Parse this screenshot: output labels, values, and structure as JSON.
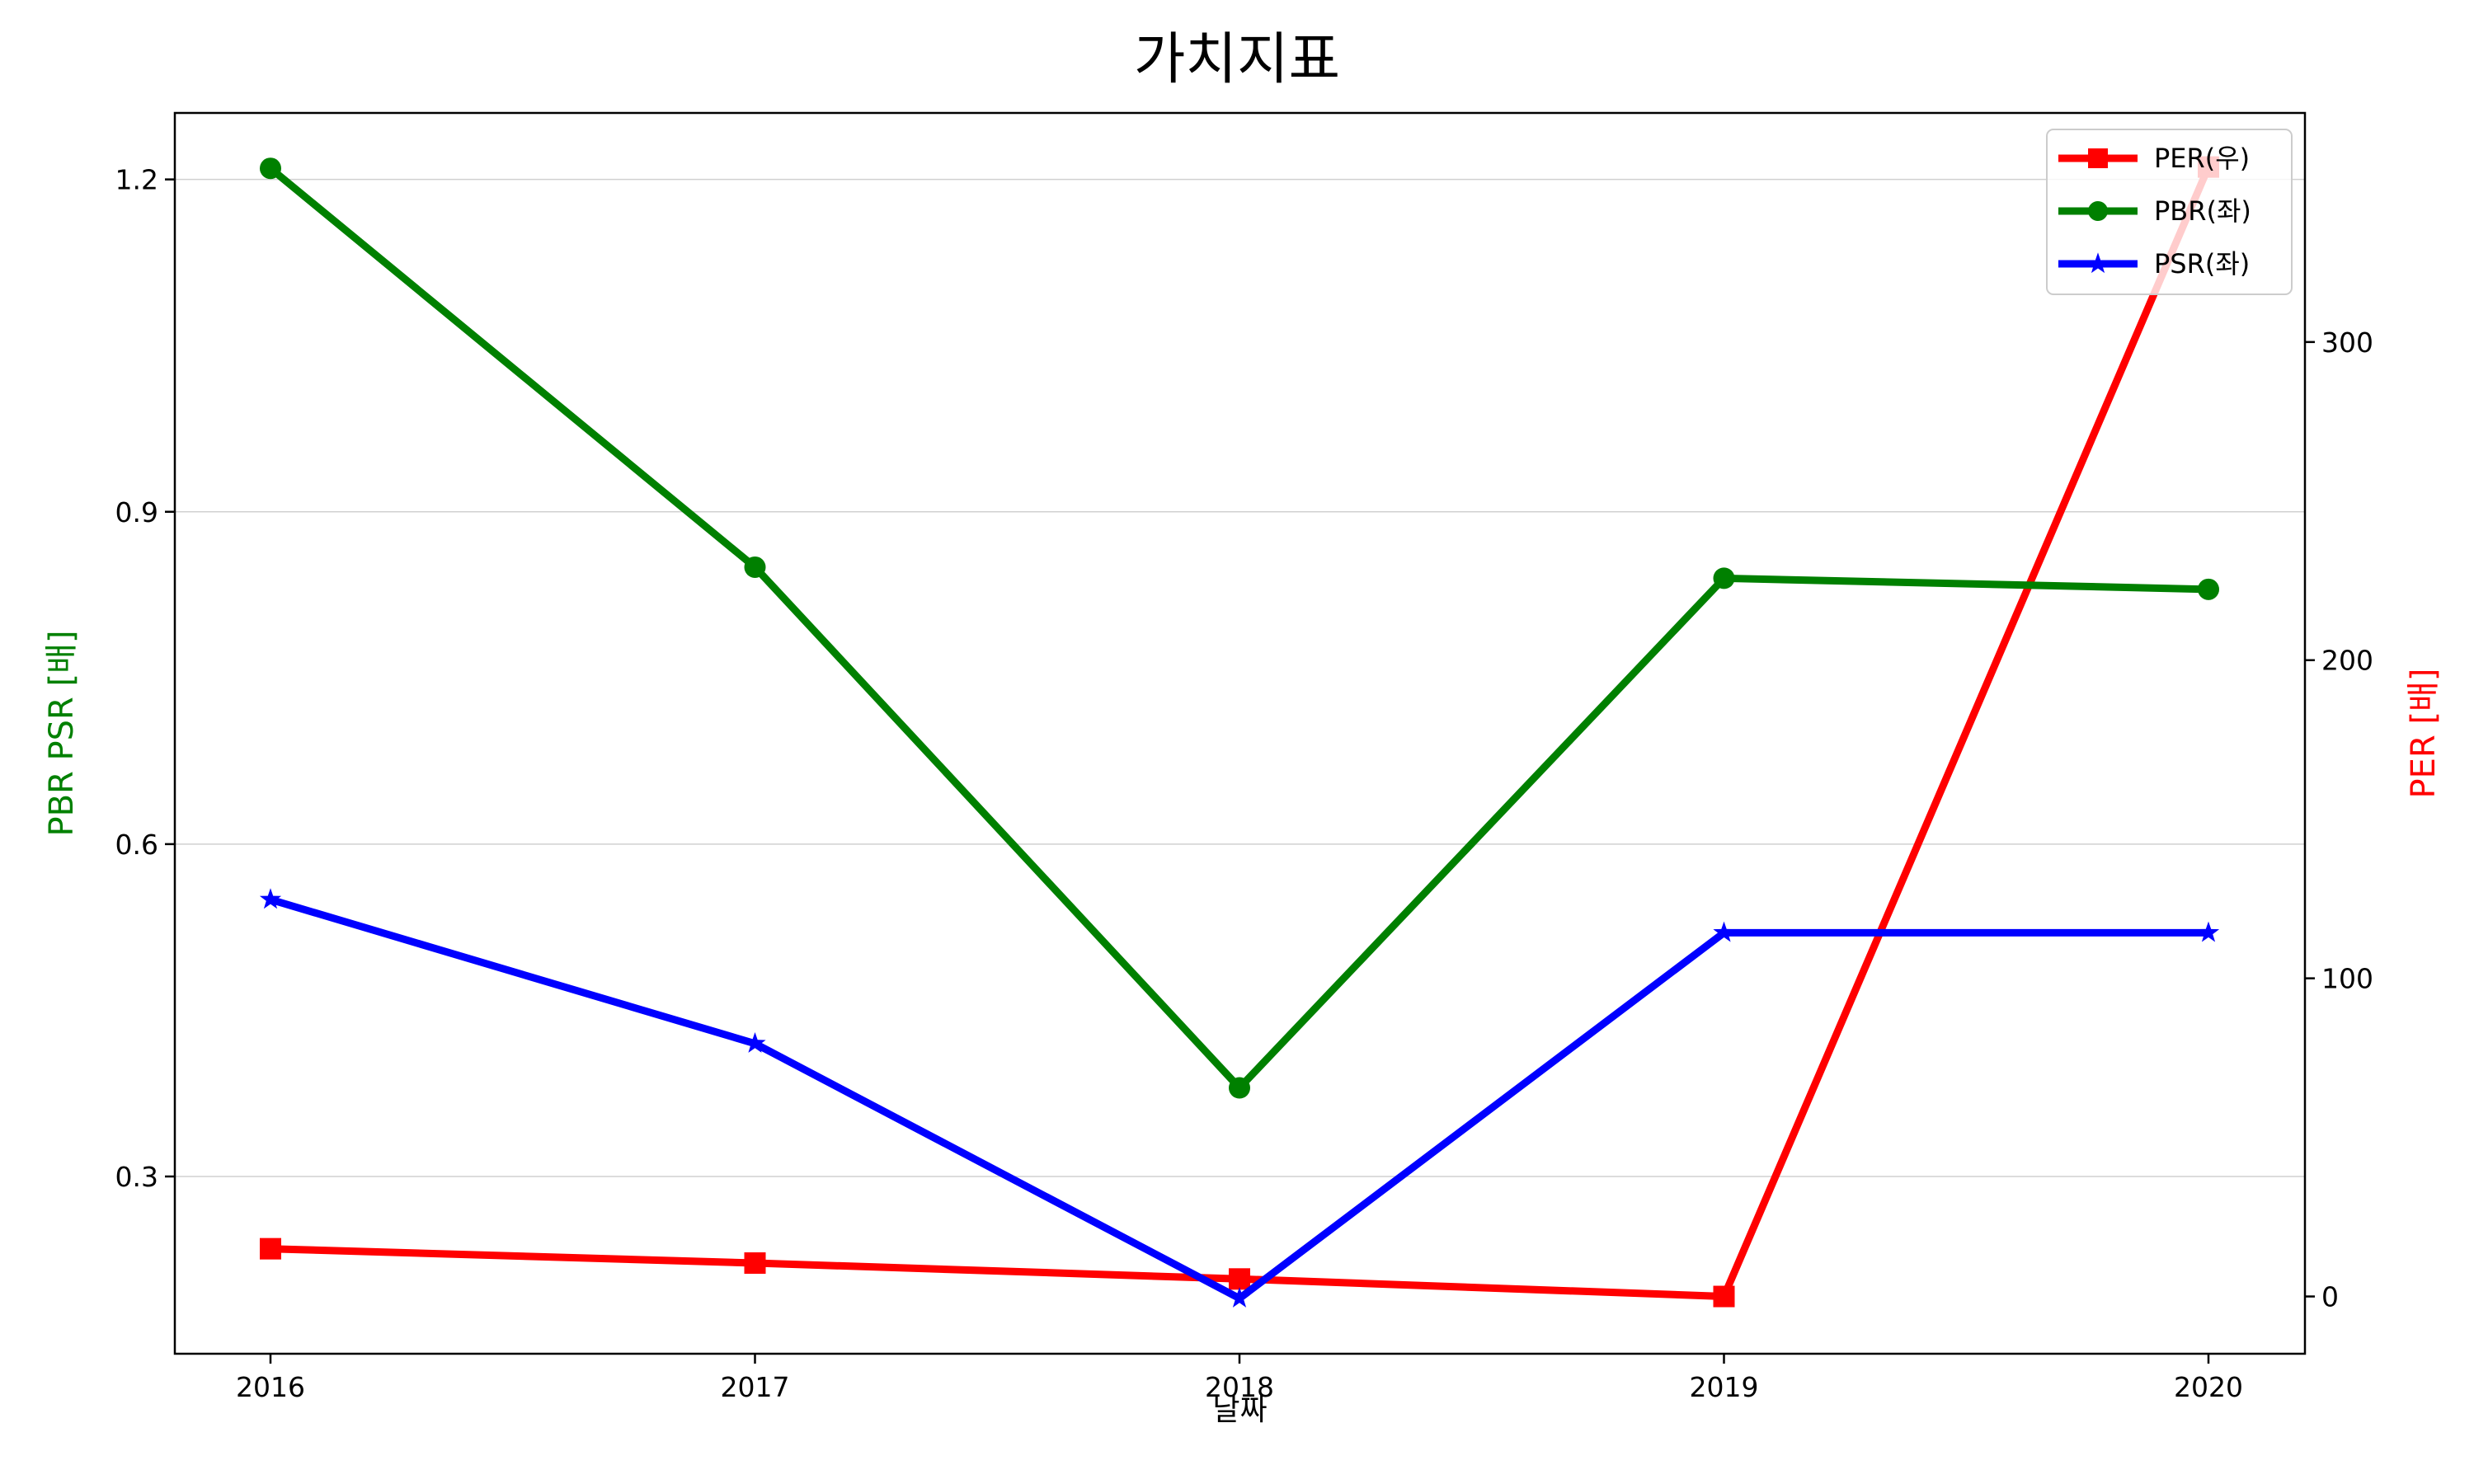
{
  "chart_data": {
    "type": "line",
    "title": "가치지표",
    "xlabel": "날짜",
    "ylabel_left": "PBR PSR [배]",
    "ylabel_right": "PER [배]",
    "x": [
      "2016",
      "2017",
      "2018",
      "2019",
      "2020"
    ],
    "ylim_left": [
      0.14,
      1.26
    ],
    "ylim_right": [
      -18,
      372
    ],
    "yticks_left": [
      0.3,
      0.6,
      0.9,
      1.2
    ],
    "yticks_left_labels": [
      "0.3",
      "0.6",
      "0.9",
      "1.2"
    ],
    "yticks_right": [
      0,
      100,
      200,
      300
    ],
    "yticks_right_labels": [
      "0",
      "100",
      "200",
      "300"
    ],
    "grid": "horizontal (left axis)",
    "legend_position": "top-right",
    "series": [
      {
        "name": "PER(우)",
        "axis": "right",
        "color": "#ff0000",
        "marker": "square",
        "values": [
          15,
          10.5,
          5.5,
          0,
          355
        ]
      },
      {
        "name": "PBR(좌)",
        "axis": "left",
        "color": "#008000",
        "marker": "circle",
        "values": [
          1.21,
          0.85,
          0.38,
          0.84,
          0.83
        ]
      },
      {
        "name": "PSR(좌)",
        "axis": "left",
        "color": "#0000ff",
        "marker": "star",
        "values": [
          0.55,
          0.42,
          0.19,
          0.52,
          0.52
        ]
      }
    ]
  }
}
